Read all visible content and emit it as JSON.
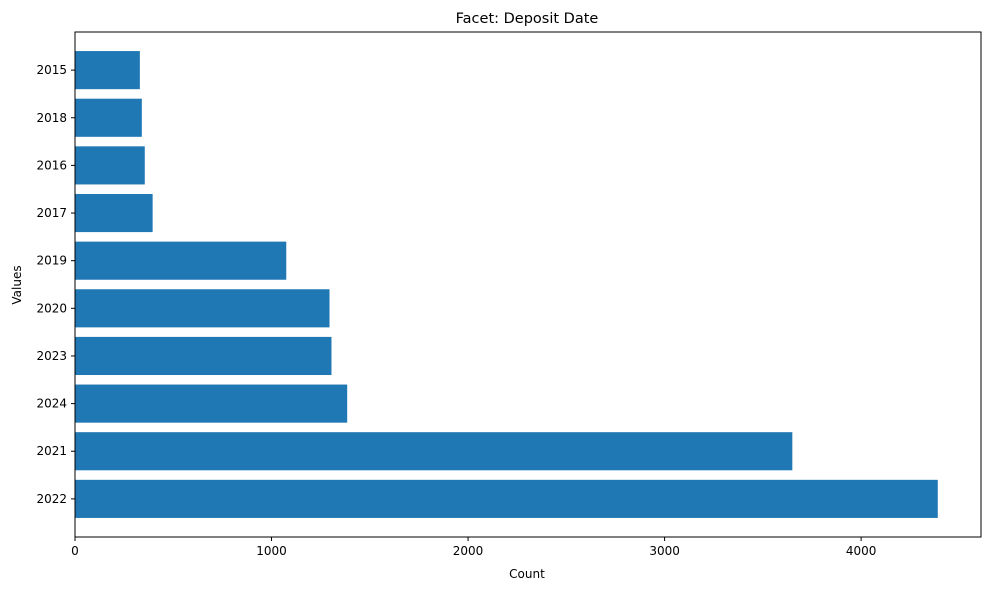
{
  "chart_data": {
    "type": "bar",
    "orientation": "horizontal",
    "title": "Facet: Deposit Date",
    "xlabel": "Count",
    "ylabel": "Values",
    "categories": [
      "2015",
      "2018",
      "2016",
      "2017",
      "2019",
      "2020",
      "2023",
      "2024",
      "2021",
      "2022"
    ],
    "values": [
      330,
      340,
      355,
      395,
      1075,
      1295,
      1305,
      1385,
      3650,
      4390
    ],
    "xlim": [
      0,
      4610
    ],
    "xticks": [
      0,
      1000,
      2000,
      3000,
      4000
    ],
    "xtick_labels": [
      "0",
      "1000",
      "2000",
      "3000",
      "4000"
    ],
    "grid": false,
    "bar_color": "#1f77b4"
  }
}
